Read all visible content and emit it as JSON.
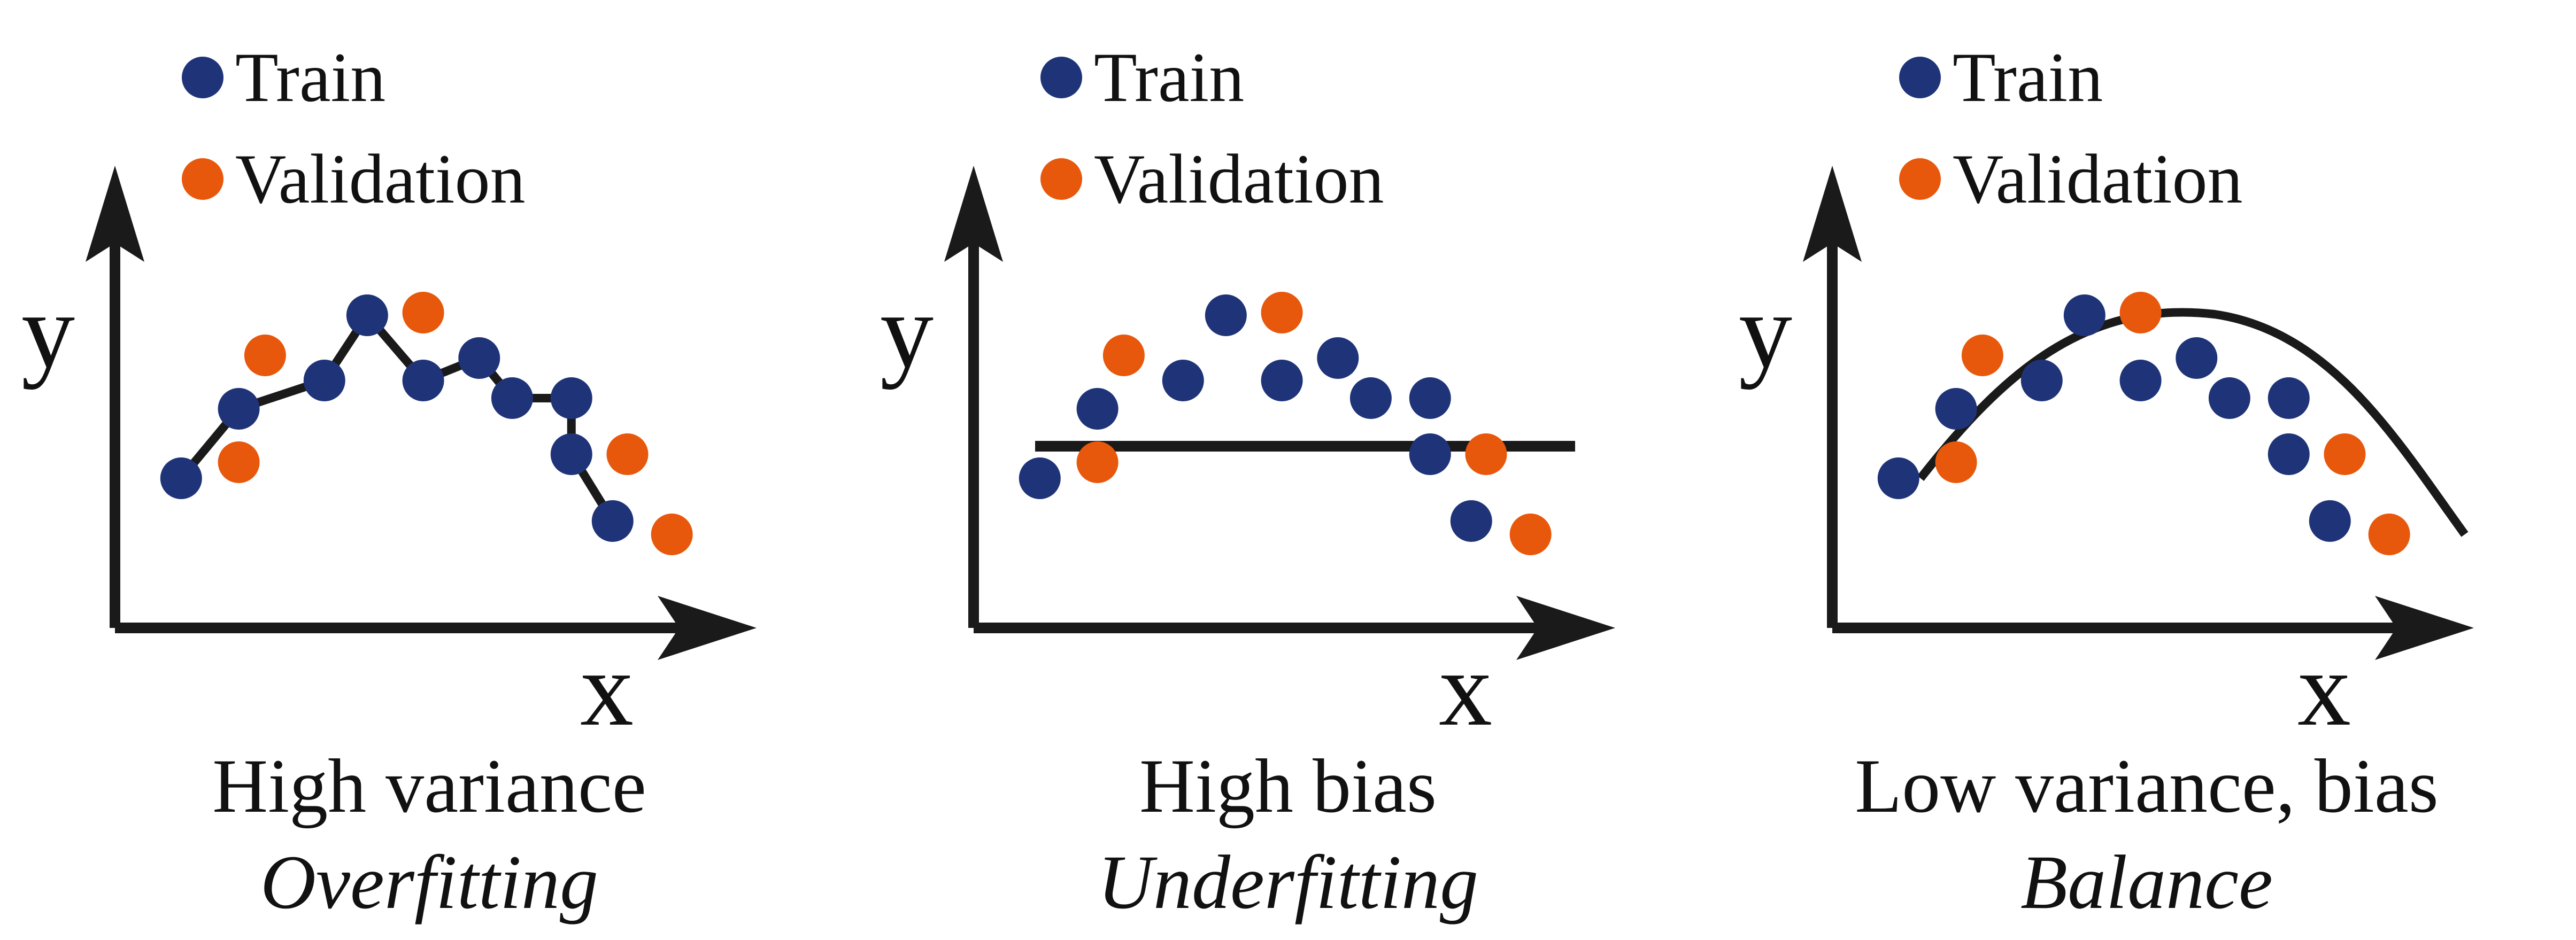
{
  "legend": {
    "train_label": "Train",
    "validation_label": "Validation",
    "train_color": "#1f3478",
    "validation_color": "#e8580c"
  },
  "axis": {
    "x_label": "x",
    "y_label": "y"
  },
  "line_color": "#1a1a1a",
  "panels": [
    {
      "caption": "High variance",
      "subcaption": "Overfitting",
      "fit": "zigzag"
    },
    {
      "caption": "High bias",
      "subcaption": "Underfitting",
      "fit": "flat"
    },
    {
      "caption": "Low variance, bias",
      "subcaption": "Balance",
      "fit": "curve"
    }
  ]
}
